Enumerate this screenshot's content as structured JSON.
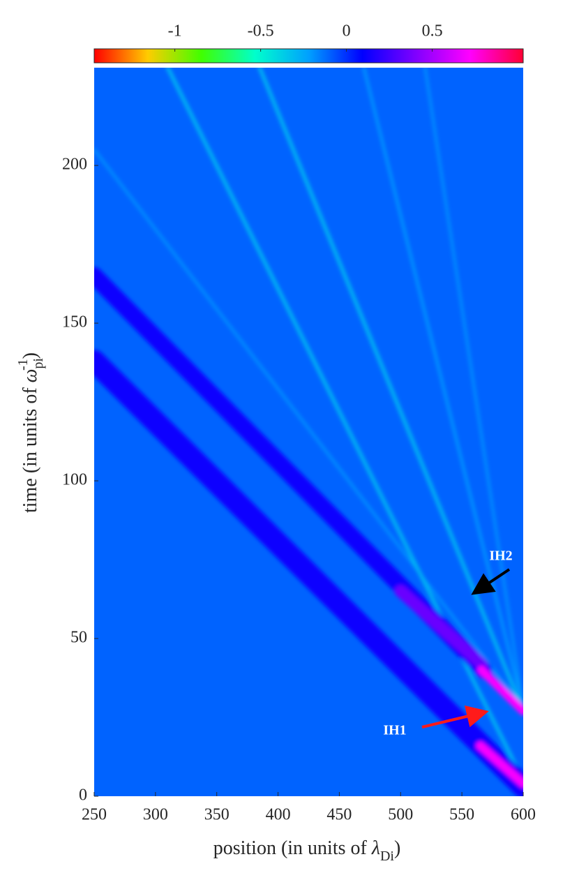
{
  "chart_data": {
    "type": "heatmap",
    "xlabel": {
      "text": "position (in units of ",
      "symbol": "λ",
      "sub": "Di",
      "close": ")"
    },
    "ylabel": {
      "text": "time (in units of ",
      "symbol": "ω",
      "sub": "pi",
      "sup": "-1",
      "close": ")"
    },
    "xlim": [
      250,
      600
    ],
    "xticks": [
      250,
      300,
      350,
      400,
      450,
      500,
      550,
      600
    ],
    "ylim": [
      0,
      231
    ],
    "yticks": [
      0,
      50,
      100,
      150,
      200
    ],
    "colorbar": {
      "clim": [
        -1.47,
        1.03
      ],
      "ticks": [
        -1,
        -0.5,
        0,
        0.5
      ],
      "colormap": [
        "#ff0000",
        "#ffcc00",
        "#40ff00",
        "#00ffcc",
        "#00a0ff",
        "#0000ff",
        "#8000ff",
        "#ff00ff",
        "#ff0033"
      ]
    },
    "background_value": -0.1,
    "features": [
      {
        "x": [
          250,
          600
        ],
        "y": [
          205,
          28
        ],
        "value": -0.2,
        "width": 2
      },
      {
        "x": [
          470,
          600
        ],
        "y": [
          231,
          28
        ],
        "value": -0.22,
        "width": 2
      },
      {
        "x": [
          520,
          600
        ],
        "y": [
          231,
          28
        ],
        "value": -0.2,
        "width": 2
      },
      {
        "x": [
          385,
          600
        ],
        "y": [
          231,
          27
        ],
        "value": -0.3,
        "width": 3
      },
      {
        "x": [
          310,
          600
        ],
        "y": [
          231,
          5
        ],
        "value": -0.3,
        "width": 3
      },
      {
        "x": [
          250,
          568
        ],
        "y": [
          165,
          40
        ],
        "value": 0.12,
        "width": 14
      },
      {
        "x": [
          250,
          600
        ],
        "y": [
          138,
          3
        ],
        "value": 0.12,
        "width": 18
      },
      {
        "x": [
          500,
          566
        ],
        "y": [
          65,
          42
        ],
        "value": 0.35,
        "width": 10
      },
      {
        "x": [
          566,
          600
        ],
        "y": [
          40,
          27
        ],
        "value": 0.7,
        "width": 7
      },
      {
        "x": [
          565,
          600
        ],
        "y": [
          16,
          4
        ],
        "value": 0.7,
        "width": 7
      }
    ],
    "annotations": [
      "IH1",
      "IH2"
    ]
  }
}
